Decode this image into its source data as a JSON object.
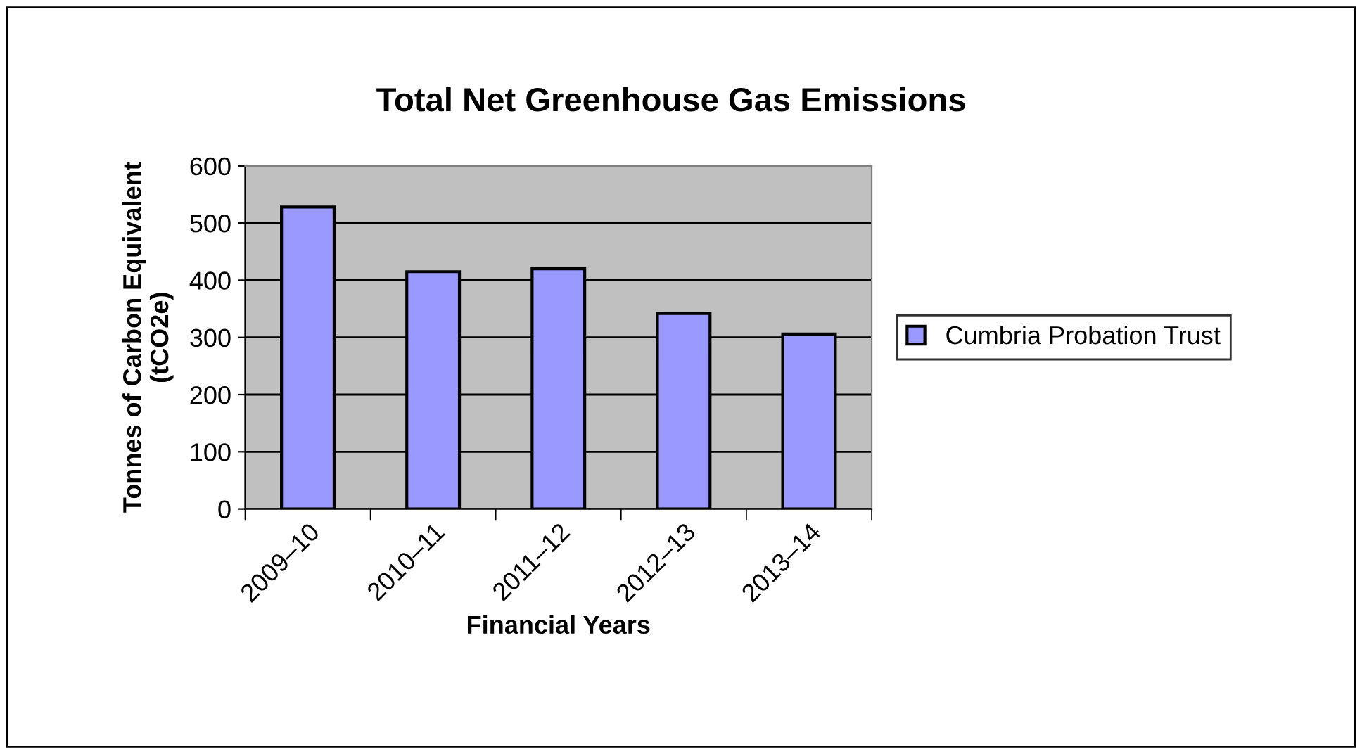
{
  "chart_data": {
    "type": "bar",
    "title": "Total Net Greenhouse Gas Emissions",
    "xlabel": "Financial Years",
    "ylabel": "Tonnes of Carbon Equivalent\n(tCO2e)",
    "categories": [
      "2009–10",
      "2010–11",
      "2011–12",
      "2012–13",
      "2013–14"
    ],
    "series": [
      {
        "name": "Cumbria Probation Trust",
        "color": "#9999ff",
        "values": [
          528,
          415,
          420,
          342,
          306
        ]
      }
    ],
    "ylim": [
      0,
      600
    ],
    "yticks": [
      0,
      100,
      200,
      300,
      400,
      500,
      600
    ],
    "grid": "y",
    "legend": "right"
  }
}
